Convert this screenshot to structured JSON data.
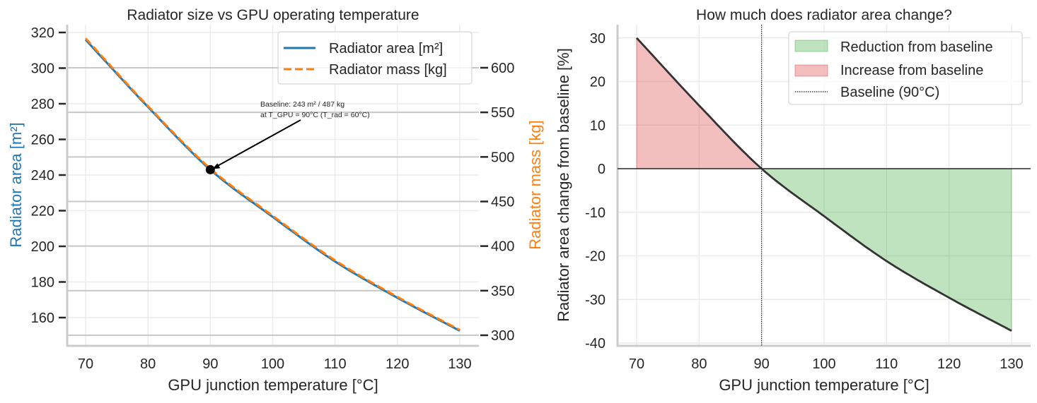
{
  "chart_data": [
    {
      "type": "line",
      "title": "Radiator size vs GPU operating temperature",
      "xlabel": "GPU junction temperature [°C]",
      "ylabel": "Radiator area [m²]",
      "ylabel_right": "Radiator mass [kg]",
      "xlim": [
        67,
        133
      ],
      "ylim": [
        145,
        323
      ],
      "ylim_right": [
        290,
        646
      ],
      "x_ticks": [
        70,
        80,
        90,
        100,
        110,
        120,
        130
      ],
      "y_ticks": [
        160,
        180,
        200,
        220,
        240,
        260,
        280,
        300,
        320
      ],
      "y_ticks_right": [
        300,
        350,
        400,
        450,
        500,
        550,
        600
      ],
      "grid": true,
      "legend_position": "top-right",
      "x": [
        70,
        80,
        90,
        100,
        110,
        120,
        130
      ],
      "series": [
        {
          "name": "Radiator area [m²]",
          "axis": "left",
          "color": "#1f77b4",
          "style": "solid",
          "values": [
            315.9,
            278.2,
            243,
            216.5,
            191.5,
            171.1,
            152.6
          ]
        },
        {
          "name": "Radiator mass [kg]",
          "axis": "right",
          "color": "#ff7f0e",
          "style": "dashed",
          "values": [
            633,
            557,
            487,
            434,
            384,
            343,
            306
          ]
        }
      ],
      "annotation": {
        "lines": [
          "Baseline: 243 m² / 487 kg",
          "at T_GPU = 90°C (T_rad = 60°C)"
        ],
        "point": [
          90,
          243
        ]
      },
      "ylabel_color": "#1f77b4",
      "ylabel_right_color": "#ff7f0e"
    },
    {
      "type": "area",
      "title": "How much does radiator area change?",
      "xlabel": "GPU junction temperature [°C]",
      "ylabel": "Radiator area change from baseline [%]",
      "xlim": [
        67,
        133
      ],
      "ylim": [
        -41,
        33
      ],
      "x_ticks": [
        70,
        80,
        90,
        100,
        110,
        120,
        130
      ],
      "y_ticks": [
        -40,
        -30,
        -20,
        -10,
        0,
        10,
        20,
        30
      ],
      "grid": true,
      "legend_position": "top-right",
      "x": [
        70,
        80,
        90,
        100,
        110,
        120,
        130
      ],
      "values": [
        30.0,
        14.5,
        0,
        -10.9,
        -21.2,
        -29.6,
        -37.2
      ],
      "baseline_x": 90,
      "legend": [
        "Reduction from baseline",
        "Increase from baseline",
        "Baseline (90°C)"
      ],
      "colors": {
        "reduction": "#2ca02c",
        "increase": "#d62728",
        "line": "#333333"
      }
    }
  ]
}
